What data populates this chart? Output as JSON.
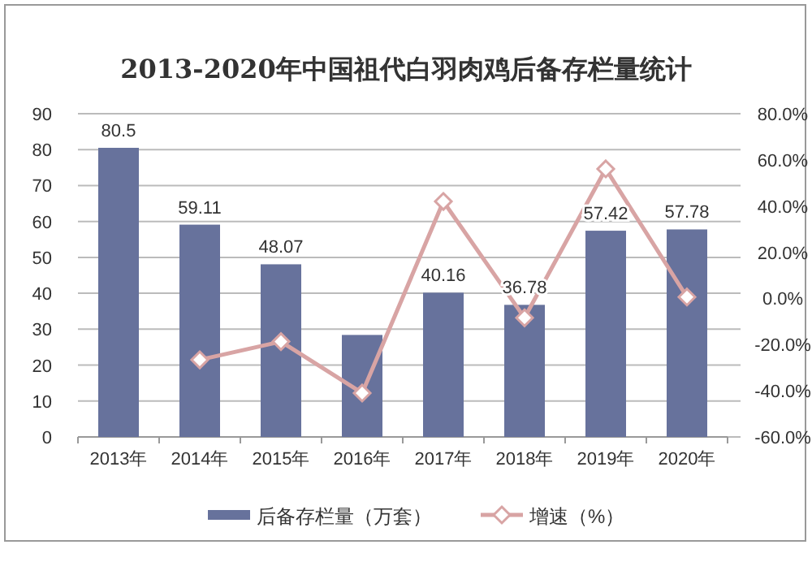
{
  "chart_data": {
    "type": "bar",
    "title": "2013-2020年中国祖代白羽肉鸡后备存栏量统计",
    "categories": [
      "2013年",
      "2014年",
      "2015年",
      "2016年",
      "2017年",
      "2018年",
      "2019年",
      "2020年"
    ],
    "series": [
      {
        "name": "后备存栏量（万套）",
        "color": "#67729c",
        "values": [
          80.5,
          59.11,
          48.07,
          28.4,
          40.16,
          36.78,
          57.42,
          57.78
        ],
        "value_labels": [
          "80.5",
          "59.11",
          "48.07",
          null,
          "40.16",
          "36.78",
          "57.42",
          "57.78"
        ]
      },
      {
        "name": "增速（%）",
        "type": "line",
        "axis": "y2",
        "color": "#d8a4a4",
        "marker": "diamond",
        "values": [
          null,
          -26.6,
          -18.7,
          -41,
          42,
          -8.4,
          56.1,
          0.6
        ]
      }
    ],
    "ylim": [
      0,
      90
    ],
    "yticks": [
      0,
      10,
      20,
      30,
      40,
      50,
      60,
      70,
      80,
      90
    ],
    "y2lim": [
      -60,
      80
    ],
    "y2ticks": [
      {
        "value": -60,
        "label": "-60.0%"
      },
      {
        "value": -40,
        "label": "-40.0%"
      },
      {
        "value": -20,
        "label": "-20.0%"
      },
      {
        "value": 0,
        "label": "0.0%"
      },
      {
        "value": 20,
        "label": "20.0%"
      },
      {
        "value": 40,
        "label": "40.0%"
      },
      {
        "value": 60,
        "label": "60.0%"
      },
      {
        "value": 80,
        "label": "80.0%"
      }
    ],
    "grid": "y",
    "legend": "bottom"
  }
}
